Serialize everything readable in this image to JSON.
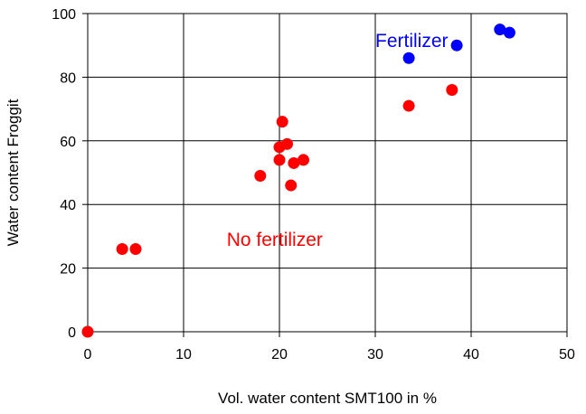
{
  "chart_data": {
    "type": "scatter",
    "xlabel": "Vol. water content SMT100 in %",
    "ylabel": "Water content Froggit",
    "xlim": [
      0,
      50
    ],
    "ylim": [
      0,
      100
    ],
    "x_ticks": [
      0,
      10,
      20,
      30,
      40,
      50
    ],
    "y_ticks": [
      0,
      20,
      40,
      60,
      80,
      100
    ],
    "grid": true,
    "series": [
      {
        "name": "No fertilizer",
        "color": "#ff0000",
        "points": [
          {
            "x": 0,
            "y": 0
          },
          {
            "x": 3.6,
            "y": 26
          },
          {
            "x": 5,
            "y": 26
          },
          {
            "x": 18,
            "y": 49
          },
          {
            "x": 20,
            "y": 54
          },
          {
            "x": 20,
            "y": 58
          },
          {
            "x": 20.3,
            "y": 66
          },
          {
            "x": 20.8,
            "y": 59
          },
          {
            "x": 21.2,
            "y": 46
          },
          {
            "x": 21.5,
            "y": 53
          },
          {
            "x": 22.5,
            "y": 54
          },
          {
            "x": 33.5,
            "y": 71
          },
          {
            "x": 38,
            "y": 76
          }
        ]
      },
      {
        "name": "Fertilizer",
        "color": "#0000ff",
        "points": [
          {
            "x": 33.5,
            "y": 86
          },
          {
            "x": 38.5,
            "y": 90
          },
          {
            "x": 43,
            "y": 95
          },
          {
            "x": 44,
            "y": 94
          }
        ]
      }
    ],
    "annotations": [
      {
        "text": "Fertilizer",
        "x": 30,
        "y": 91.5,
        "color": "#0000ff"
      },
      {
        "text": "No fertilizer",
        "x": 14.5,
        "y": 29,
        "color": "#ff0000"
      }
    ]
  }
}
